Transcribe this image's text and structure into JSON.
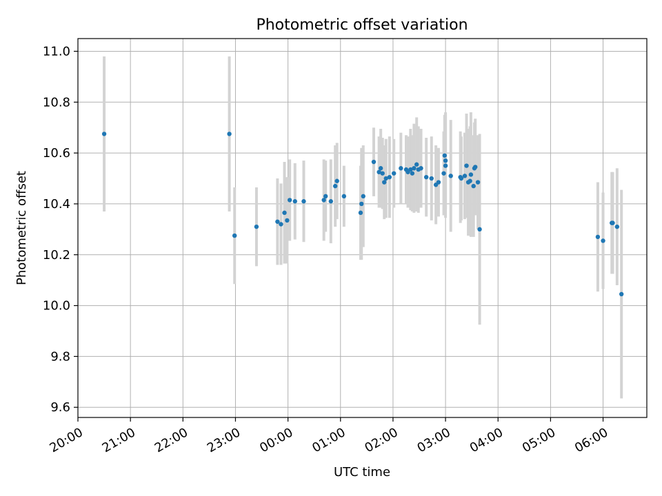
{
  "chart_data": {
    "type": "scatter",
    "title": "Photometric offset variation",
    "xlabel": "UTC time",
    "ylabel": "Photometric offset",
    "xlim": [
      "20:00",
      "06:50"
    ],
    "ylim": [
      9.56,
      11.05
    ],
    "grid": true,
    "x_ticks": [
      "20:00",
      "21:00",
      "22:00",
      "23:00",
      "00:00",
      "01:00",
      "02:00",
      "03:00",
      "04:00",
      "05:00",
      "06:00"
    ],
    "y_ticks": [
      9.6,
      9.8,
      10.0,
      10.2,
      10.4,
      10.6,
      10.8,
      11.0
    ],
    "y_tick_labels": [
      "9.6",
      "9.8",
      "10.0",
      "10.2",
      "10.4",
      "10.6",
      "10.8",
      "11.0"
    ],
    "colors": {
      "points": "#1f77b4",
      "error_bars": "#d3d3d3",
      "grid": "#b0b0b0"
    },
    "series": [
      {
        "x": [
          "20:30",
          "22:53",
          "22:59",
          "23:24",
          "23:48",
          "23:52",
          "23:56",
          "23:59",
          "00:02",
          "00:08",
          "00:18",
          "00:41",
          "00:43",
          "00:49",
          "00:54",
          "00:56",
          "01:04",
          "01:23",
          "01:24",
          "01:26",
          "01:38",
          "01:44",
          "01:46",
          "01:48",
          "01:50",
          "01:52",
          "01:56",
          "02:01",
          "02:09",
          "02:15",
          "02:17",
          "02:20",
          "02:22",
          "02:24",
          "02:27",
          "02:29",
          "02:32",
          "02:38",
          "02:44",
          "02:49",
          "02:52",
          "02:58",
          "02:59",
          "03:00",
          "03:00",
          "03:06",
          "03:17",
          "03:18",
          "03:22",
          "03:24",
          "03:26",
          "03:28",
          "03:29",
          "03:32",
          "03:33",
          "03:34",
          "03:37",
          "03:39",
          "05:54",
          "06:00",
          "06:10",
          "06:11",
          "06:16",
          "06:21"
        ],
        "y": [
          10.675,
          10.675,
          10.275,
          10.31,
          10.33,
          10.32,
          10.365,
          10.335,
          10.415,
          10.41,
          10.41,
          10.415,
          10.43,
          10.41,
          10.47,
          10.49,
          10.43,
          10.365,
          10.4,
          10.43,
          10.565,
          10.525,
          10.54,
          10.52,
          10.485,
          10.5,
          10.505,
          10.52,
          10.54,
          10.535,
          10.525,
          10.535,
          10.52,
          10.54,
          10.555,
          10.535,
          10.54,
          10.505,
          10.5,
          10.475,
          10.485,
          10.52,
          10.59,
          10.55,
          10.57,
          10.51,
          10.505,
          10.5,
          10.51,
          10.55,
          10.485,
          10.49,
          10.515,
          10.47,
          10.54,
          10.545,
          10.485,
          10.3,
          10.27,
          10.255,
          10.325,
          10.325,
          10.31,
          10.045
        ],
        "y_err": [
          0.305,
          0.305,
          0.19,
          0.155,
          0.17,
          0.16,
          0.2,
          0.17,
          0.16,
          0.15,
          0.16,
          0.16,
          0.14,
          0.165,
          0.16,
          0.15,
          0.12,
          0.185,
          0.22,
          0.2,
          0.135,
          0.14,
          0.155,
          0.14,
          0.145,
          0.155,
          0.16,
          0.135,
          0.14,
          0.135,
          0.14,
          0.16,
          0.15,
          0.175,
          0.185,
          0.17,
          0.155,
          0.155,
          0.165,
          0.155,
          0.135,
          0.165,
          0.16,
          0.205,
          0.19,
          0.22,
          0.18,
          0.165,
          0.17,
          0.205,
          0.21,
          0.215,
          0.245,
          0.2,
          0.18,
          0.19,
          0.185,
          0.375,
          0.215,
          0.19,
          0.2,
          0.2,
          0.23,
          0.41
        ]
      }
    ]
  }
}
